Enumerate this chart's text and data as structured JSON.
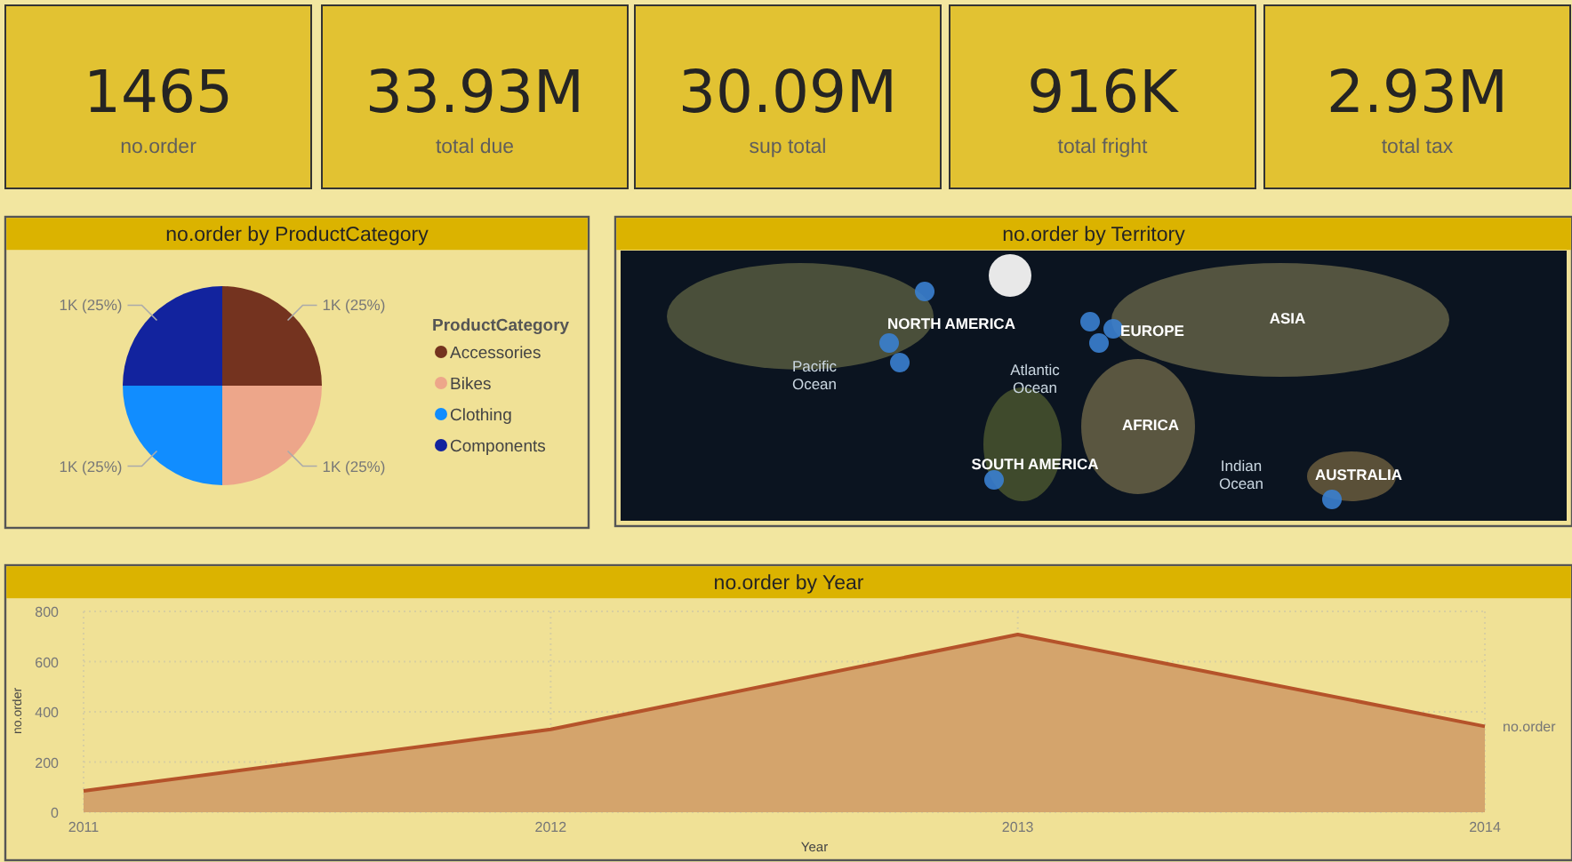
{
  "chart_data": [
    {
      "type": "other",
      "annotations": [
        "1465",
        "no.order",
        "33.93M",
        "total due",
        "30.09M",
        "sup total",
        "916K",
        "total fright",
        "2.93M",
        "total tax"
      ]
    },
    {
      "type": "pie",
      "title": "no.order by ProductCategory",
      "legend_title": "ProductCategory",
      "legend": "right",
      "categories": [
        "Accessories",
        "Bikes",
        "Clothing",
        "Components"
      ],
      "values": [
        25,
        25,
        25,
        25
      ],
      "colors": [
        "#74331f",
        "#eda68a",
        "#118dff",
        "#12239e"
      ],
      "value_labels": [
        "1K (25%)",
        "1K (25%)",
        "1K (25%)",
        "1K (25%)"
      ]
    },
    {
      "type": "other",
      "title": "no.order by Territory",
      "annotations": [
        "NORTH AMERICA",
        "EUROPE",
        "ASIA",
        "Pacific\nOcean",
        "Atlantic\nOcean",
        "AFRICA",
        "SOUTH AMERICA",
        "Indian\nOcean",
        "AUSTRALIA"
      ]
    },
    {
      "type": "area",
      "title": "no.order by Year",
      "xlabel": "Year",
      "ylabel": "no.order",
      "x": [
        2011,
        2012,
        2013,
        2014
      ],
      "xlim": [
        2011,
        2014
      ],
      "xticks": [
        2011,
        2012,
        2013,
        2014
      ],
      "ylim": [
        0,
        800
      ],
      "yticks": [
        0,
        200,
        400,
        600,
        800
      ],
      "grid": true,
      "series": [
        {
          "name": "no.order",
          "color": "#b5532a",
          "values": [
            85,
            330,
            708,
            342
          ]
        }
      ]
    }
  ]
}
